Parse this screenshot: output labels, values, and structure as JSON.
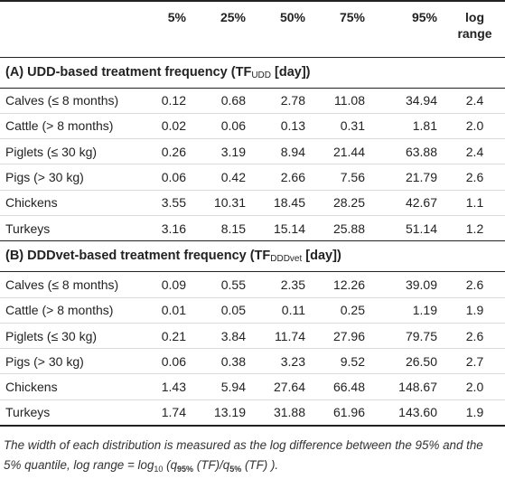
{
  "header": {
    "label": "",
    "q5": "5%",
    "q25": "25%",
    "q50": "50%",
    "q75": "75%",
    "q95": "95%",
    "log_range_line1": "log",
    "log_range_line2": "range"
  },
  "section_a": {
    "title_main": "(A) UDD-based treatment frequency (TF",
    "title_sub": "UDD",
    "title_end": " [day])",
    "rows": [
      {
        "label": "Calves (≤ 8 months)",
        "q5": "0.12",
        "q25": "0.68",
        "q50": "2.78",
        "q75": "11.08",
        "q95": "34.94",
        "log": "2.4"
      },
      {
        "label": "Cattle (> 8 months)",
        "q5": "0.02",
        "q25": "0.06",
        "q50": "0.13",
        "q75": "0.31",
        "q95": "1.81",
        "log": "2.0"
      },
      {
        "label": "Piglets (≤ 30 kg)",
        "q5": "0.26",
        "q25": "3.19",
        "q50": "8.94",
        "q75": "21.44",
        "q95": "63.88",
        "log": "2.4"
      },
      {
        "label": "Pigs (> 30 kg)",
        "q5": "0.06",
        "q25": "0.42",
        "q50": "2.66",
        "q75": "7.56",
        "q95": "21.79",
        "log": "2.6"
      },
      {
        "label": "Chickens",
        "q5": "3.55",
        "q25": "10.31",
        "q50": "18.45",
        "q75": "28.25",
        "q95": "42.67",
        "log": "1.1"
      },
      {
        "label": "Turkeys",
        "q5": "3.16",
        "q25": "8.15",
        "q50": "15.14",
        "q75": "25.88",
        "q95": "51.14",
        "log": "1.2"
      }
    ]
  },
  "section_b": {
    "title_main": "(B) DDDvet-based treatment frequency (TF",
    "title_sub": "DDDvet",
    "title_end": " [day])",
    "rows": [
      {
        "label": "Calves (≤ 8 months)",
        "q5": "0.09",
        "q25": "0.55",
        "q50": "2.35",
        "q75": "12.26",
        "q95": "39.09",
        "log": "2.6"
      },
      {
        "label": "Cattle (> 8 months)",
        "q5": "0.01",
        "q25": "0.05",
        "q50": "0.11",
        "q75": "0.25",
        "q95": "1.19",
        "log": "1.9"
      },
      {
        "label": "Piglets (≤ 30 kg)",
        "q5": "0.21",
        "q25": "3.84",
        "q50": "11.74",
        "q75": "27.96",
        "q95": "79.75",
        "log": "2.6"
      },
      {
        "label": "Pigs (> 30 kg)",
        "q5": "0.06",
        "q25": "0.38",
        "q50": "3.23",
        "q75": "9.52",
        "q95": "26.50",
        "log": "2.7"
      },
      {
        "label": "Chickens",
        "q5": "1.43",
        "q25": "5.94",
        "q50": "27.64",
        "q75": "66.48",
        "q95": "148.67",
        "log": "2.0"
      },
      {
        "label": "Turkeys",
        "q5": "1.74",
        "q25": "13.19",
        "q50": "31.88",
        "q75": "61.96",
        "q95": "143.60",
        "log": "1.9"
      }
    ]
  },
  "footnote": {
    "text": "The width of each distribution is measured as the log difference between the 95% and the 5% quantile, log range = log",
    "log_base": "10",
    "formula_open": " (q",
    "sub_95": "95%",
    "formula_mid": " (TF)/q",
    "sub_5": "5%",
    "formula_end": " (TF) )."
  }
}
